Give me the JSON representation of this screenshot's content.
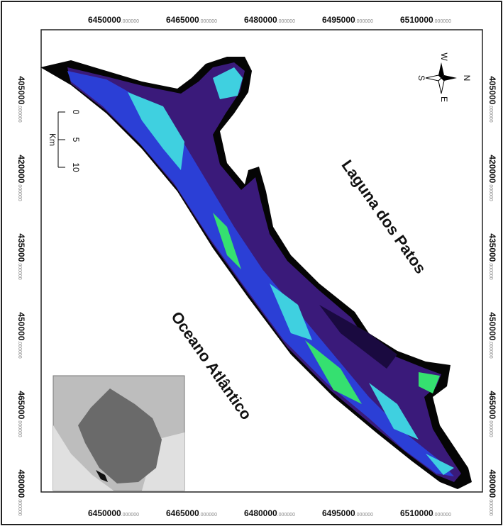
{
  "top_axis": [
    {
      "main": "6450000",
      "suffix": "000000"
    },
    {
      "main": "6465000",
      "suffix": "000000"
    },
    {
      "main": "6480000",
      "suffix": "000000"
    },
    {
      "main": "6495000",
      "suffix": "000000"
    },
    {
      "main": "6510000",
      "suffix": "000000"
    }
  ],
  "bottom_axis": [
    {
      "main": "6450000",
      "suffix": "000000"
    },
    {
      "main": "6465000",
      "suffix": "000000"
    },
    {
      "main": "6480000",
      "suffix": "000000"
    },
    {
      "main": "6495000",
      "suffix": "000000"
    },
    {
      "main": "6510000",
      "suffix": "000000"
    }
  ],
  "left_axis": [
    {
      "main": "405000",
      "suffix": "000000"
    },
    {
      "main": "420000",
      "suffix": "000000"
    },
    {
      "main": "435000",
      "suffix": "000000"
    },
    {
      "main": "450000",
      "suffix": "000000"
    },
    {
      "main": "465000",
      "suffix": "000000"
    },
    {
      "main": "480000",
      "suffix": "000000"
    }
  ],
  "right_axis": [
    {
      "main": "405000",
      "suffix": "000000"
    },
    {
      "main": "420000",
      "suffix": "000000"
    },
    {
      "main": "435000",
      "suffix": "000000"
    },
    {
      "main": "450000",
      "suffix": "000000"
    },
    {
      "main": "465000",
      "suffix": "000000"
    },
    {
      "main": "480000",
      "suffix": "000000"
    }
  ],
  "compass": {
    "west": "W",
    "north": "N",
    "south": "S",
    "east": "E"
  },
  "scale_bar": {
    "ticks": [
      "0",
      "5",
      "10"
    ],
    "unit": "Km"
  },
  "labels": {
    "lagoon": "Laguna dos Patos",
    "ocean": "Oceano Atlântico"
  }
}
